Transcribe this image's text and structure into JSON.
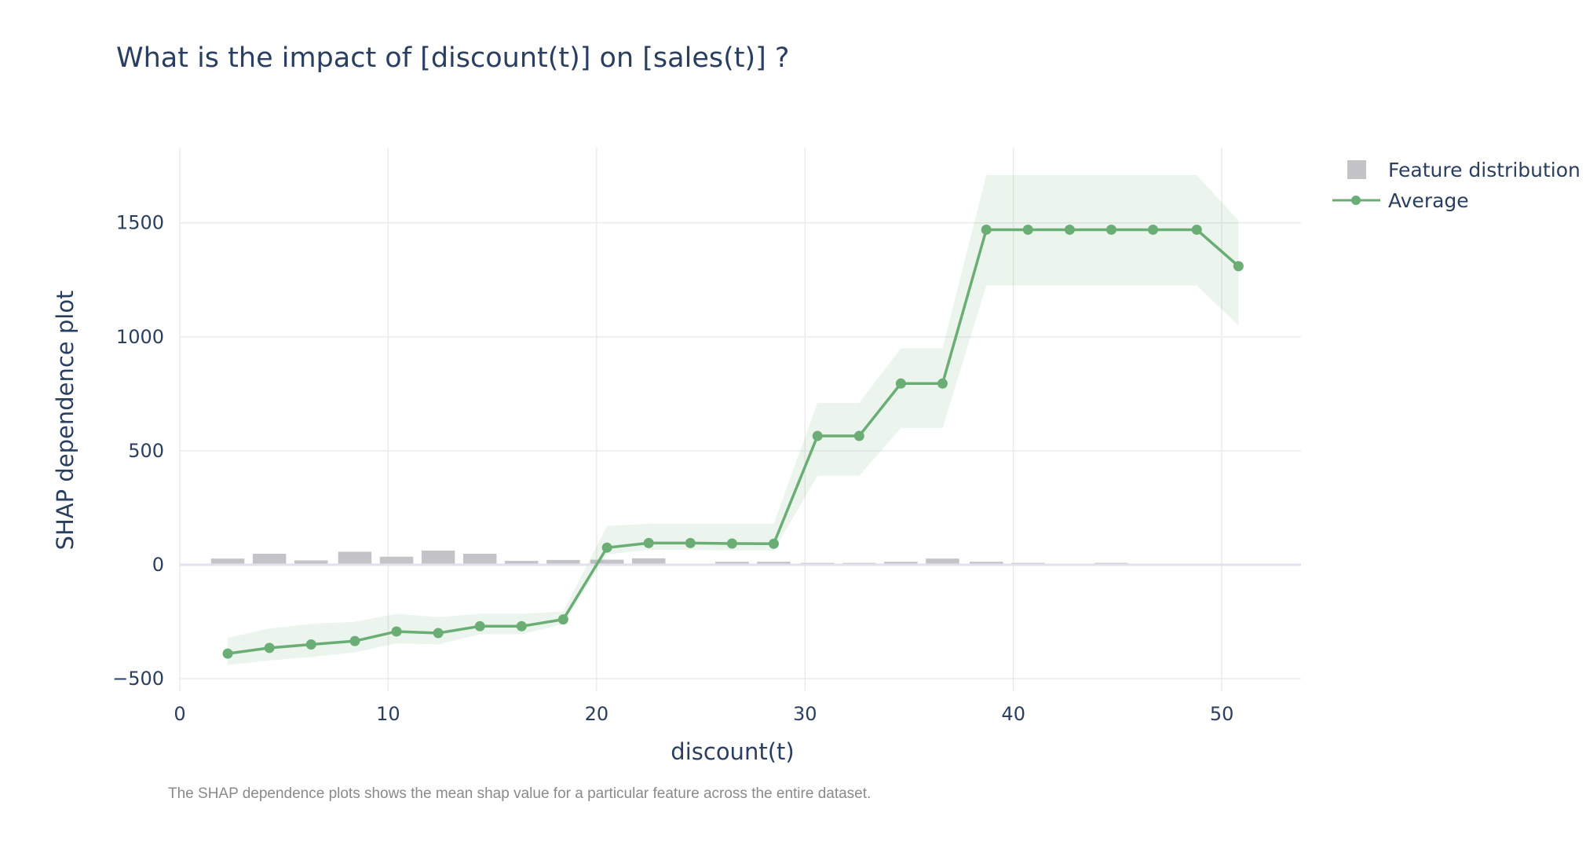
{
  "chart_data": {
    "type": "line",
    "title": "What is the impact of [discount(t)] on [sales(t)] ?",
    "xlabel": "discount(t)",
    "ylabel": "SHAP dependence plot",
    "xlim": [
      0,
      53.8
    ],
    "ylim": [
      -555,
      1830
    ],
    "x_ticks": [
      0,
      10,
      20,
      30,
      40,
      50
    ],
    "y_ticks": [
      -500,
      0,
      500,
      1000,
      1500
    ],
    "x_tick_labels": [
      "0",
      "10",
      "20",
      "30",
      "40",
      "50"
    ],
    "y_tick_labels": [
      "−500",
      "0",
      "500",
      "1000",
      "1500"
    ],
    "grid": true,
    "legend": {
      "position": "top-right",
      "entries": [
        {
          "name": "Feature distribution",
          "symbol": "square",
          "color": "#c4c3c7"
        },
        {
          "name": "Average",
          "symbol": "line-marker",
          "color": "#6aae75"
        }
      ]
    },
    "series": [
      {
        "name": "Average",
        "color": "#6aae75",
        "x": [
          2.3,
          4.3,
          6.3,
          8.4,
          10.4,
          12.4,
          14.4,
          16.4,
          18.4,
          20.5,
          22.5,
          24.5,
          26.5,
          28.5,
          30.6,
          32.6,
          34.6,
          36.6,
          38.7,
          40.7,
          42.7,
          44.7,
          46.7,
          48.8,
          50.8
        ],
        "y": [
          -390,
          -365,
          -350,
          -335,
          -293,
          -300,
          -270,
          -270,
          -240,
          75,
          95,
          95,
          93,
          92,
          565,
          565,
          795,
          795,
          1470,
          1470,
          1470,
          1470,
          1470,
          1470,
          1310
        ],
        "band_upper": [
          -320,
          -280,
          -260,
          -250,
          -215,
          -230,
          -215,
          -215,
          -205,
          170,
          180,
          180,
          180,
          180,
          710,
          710,
          950,
          950,
          1710,
          1710,
          1710,
          1710,
          1710,
          1710,
          1510
        ],
        "band_lower": [
          -440,
          -420,
          -405,
          -385,
          -345,
          -350,
          -305,
          -305,
          -260,
          45,
          65,
          65,
          63,
          62,
          390,
          390,
          600,
          600,
          1225,
          1225,
          1225,
          1225,
          1225,
          1225,
          1050
        ]
      },
      {
        "name": "Feature distribution",
        "type": "bar",
        "color": "#c4c3c7",
        "x": [
          2.3,
          4.3,
          6.3,
          8.4,
          10.4,
          12.4,
          14.4,
          16.4,
          18.4,
          20.5,
          22.5,
          24.5,
          26.5,
          28.5,
          30.6,
          32.6,
          34.6,
          36.6,
          38.7,
          40.7,
          42.7,
          44.7,
          46.7,
          48.8,
          50.8
        ],
        "values": [
          27,
          48,
          19,
          57,
          35,
          62,
          48,
          17,
          21,
          22,
          28,
          5,
          13,
          13,
          8,
          8,
          13,
          27,
          13,
          8,
          5,
          8,
          5,
          5,
          5
        ]
      }
    ],
    "caption": "The SHAP dependence plots shows the mean shap value for a particular feature across the entire dataset."
  }
}
